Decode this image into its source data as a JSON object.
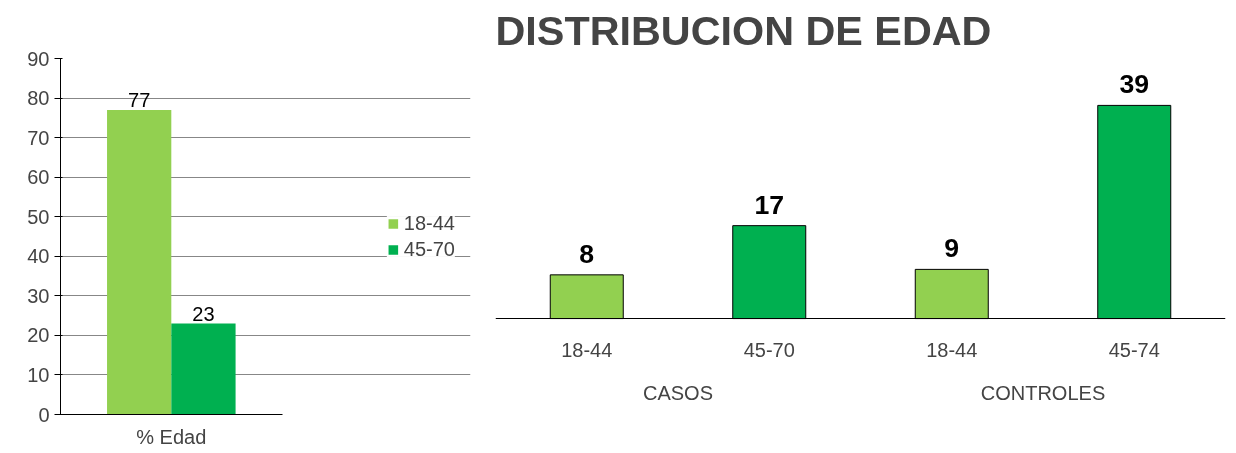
{
  "chart_data": [
    {
      "type": "bar",
      "categories": [
        "% Edad"
      ],
      "series": [
        {
          "name": "18-44",
          "color": "#92d050",
          "values": [
            77
          ]
        },
        {
          "name": "45-70",
          "color": "#00b050",
          "values": [
            23
          ]
        }
      ],
      "ylim": [
        0,
        90
      ],
      "yticks": [
        0,
        10,
        20,
        30,
        40,
        50,
        60,
        70,
        80,
        90
      ],
      "grid": "y",
      "legend": "right",
      "data_labels": true
    },
    {
      "type": "bar",
      "title": "DISTRIBUCION DE EDAD",
      "categories": [
        "18-44",
        "45-70",
        "18-44",
        "45-74"
      ],
      "values": [
        8,
        17,
        9,
        39
      ],
      "colors": [
        "#92d050",
        "#00b050",
        "#92d050",
        "#00b050"
      ],
      "data_labels": true,
      "annotations": [
        "CASOS",
        "CONTROLES"
      ],
      "grid": false
    }
  ]
}
